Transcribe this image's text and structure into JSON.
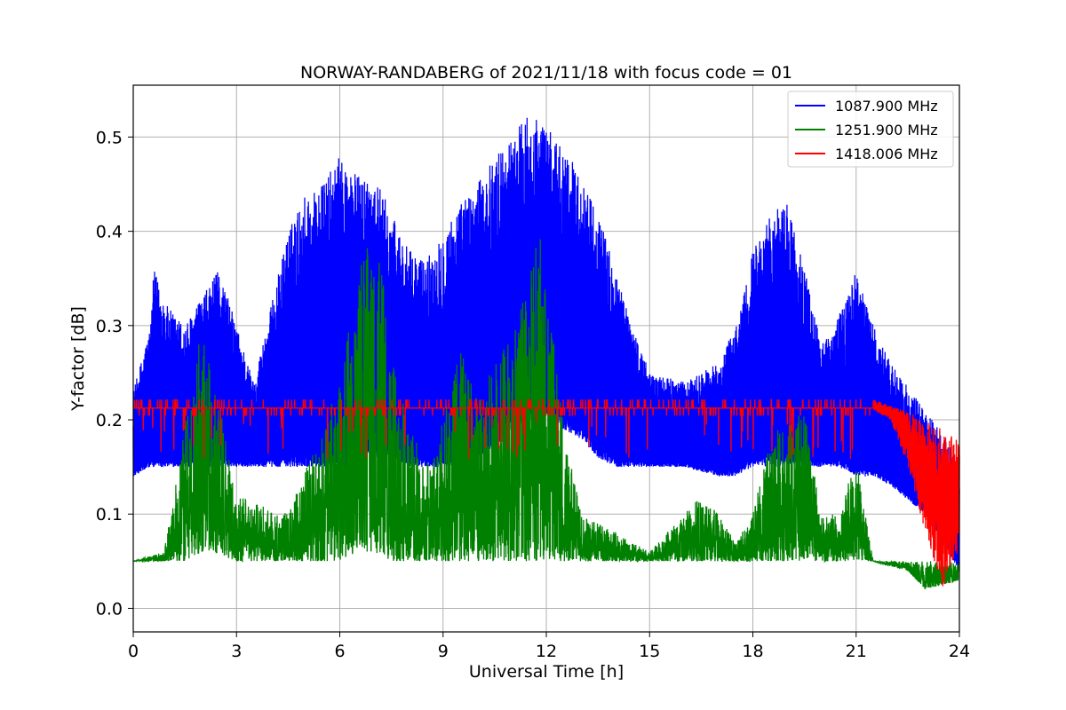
{
  "chart_data": {
    "type": "line",
    "title": "NORWAY-RANDABERG of 2021/11/18 with focus code = 01",
    "xlabel": "Universal Time [h]",
    "ylabel": "Y-factor [dB]",
    "xlim": [
      0,
      24
    ],
    "ylim": [
      -0.025,
      0.555
    ],
    "xticks": [
      0,
      3,
      6,
      9,
      12,
      15,
      18,
      21,
      24
    ],
    "yticks": [
      0.0,
      0.1,
      0.2,
      0.3,
      0.4,
      0.5
    ],
    "ytick_labels": [
      "0.0",
      "0.1",
      "0.2",
      "0.3",
      "0.4",
      "0.5"
    ],
    "grid": true,
    "legend_position": "top-right",
    "series": [
      {
        "name": "1087.900 MHz",
        "color": "#0000ff",
        "envelope": {
          "x": [
            0,
            0.5,
            0.6,
            1.0,
            1.5,
            2.0,
            2.5,
            3.0,
            3.5,
            4.5,
            5.0,
            5.5,
            6.0,
            6.5,
            7.0,
            7.5,
            8.0,
            8.5,
            9.0,
            9.5,
            10.0,
            10.5,
            11.0,
            11.5,
            12.0,
            12.5,
            13.0,
            13.5,
            14.0,
            14.5,
            15.0,
            16.0,
            17.0,
            17.5,
            18.0,
            18.5,
            19.0,
            19.5,
            20.0,
            20.5,
            21.0,
            21.5,
            22.0,
            23.0,
            24.0
          ],
          "max": [
            0.23,
            0.3,
            0.36,
            0.32,
            0.3,
            0.33,
            0.36,
            0.3,
            0.24,
            0.4,
            0.44,
            0.45,
            0.48,
            0.46,
            0.46,
            0.42,
            0.38,
            0.37,
            0.4,
            0.43,
            0.45,
            0.48,
            0.5,
            0.53,
            0.51,
            0.49,
            0.46,
            0.42,
            0.36,
            0.3,
            0.25,
            0.24,
            0.26,
            0.3,
            0.38,
            0.42,
            0.43,
            0.36,
            0.28,
            0.31,
            0.36,
            0.3,
            0.26,
            0.21,
            0.16
          ],
          "min": [
            0.14,
            0.15,
            0.15,
            0.15,
            0.15,
            0.15,
            0.15,
            0.15,
            0.15,
            0.15,
            0.15,
            0.15,
            0.15,
            0.15,
            0.16,
            0.16,
            0.15,
            0.15,
            0.15,
            0.15,
            0.16,
            0.17,
            0.19,
            0.2,
            0.2,
            0.19,
            0.18,
            0.16,
            0.15,
            0.15,
            0.15,
            0.15,
            0.14,
            0.14,
            0.15,
            0.15,
            0.15,
            0.15,
            0.15,
            0.15,
            0.14,
            0.14,
            0.13,
            0.1,
            0.04
          ]
        }
      },
      {
        "name": "1251.900 MHz",
        "color": "#008000",
        "envelope": {
          "x": [
            0,
            0.9,
            1.5,
            2.0,
            2.3,
            3.0,
            4.5,
            6.0,
            6.5,
            7.0,
            7.5,
            8.0,
            8.5,
            9.0,
            9.5,
            10.0,
            10.5,
            11.0,
            11.5,
            11.8,
            12.5,
            13.0,
            14.0,
            15.0,
            16.0,
            16.5,
            17.0,
            17.5,
            18.0,
            18.5,
            19.0,
            19.5,
            20.0,
            20.5,
            21.0,
            21.5,
            22.5,
            23.0,
            24.0
          ],
          "max": [
            0.05,
            0.06,
            0.2,
            0.3,
            0.26,
            0.12,
            0.1,
            0.24,
            0.36,
            0.4,
            0.3,
            0.2,
            0.15,
            0.2,
            0.28,
            0.22,
            0.26,
            0.29,
            0.35,
            0.43,
            0.2,
            0.1,
            0.08,
            0.06,
            0.1,
            0.12,
            0.1,
            0.07,
            0.1,
            0.18,
            0.2,
            0.21,
            0.1,
            0.1,
            0.16,
            0.05,
            0.05,
            0.05,
            0.05
          ],
          "min": [
            0.05,
            0.05,
            0.05,
            0.06,
            0.06,
            0.05,
            0.05,
            0.05,
            0.06,
            0.06,
            0.05,
            0.05,
            0.05,
            0.05,
            0.05,
            0.05,
            0.05,
            0.05,
            0.05,
            0.05,
            0.05,
            0.05,
            0.05,
            0.05,
            0.05,
            0.05,
            0.05,
            0.05,
            0.05,
            0.05,
            0.05,
            0.05,
            0.05,
            0.05,
            0.05,
            0.05,
            0.04,
            0.02,
            0.03
          ]
        }
      },
      {
        "name": "1418.006 MHz",
        "color": "#ff0000",
        "envelope": {
          "x": [
            0,
            21.5,
            22.0,
            22.5,
            23.0,
            23.5,
            24.0
          ],
          "max": [
            0.222,
            0.222,
            0.215,
            0.21,
            0.2,
            0.19,
            0.18
          ],
          "min": [
            0.21,
            0.21,
            0.2,
            0.15,
            0.08,
            0.02,
            0.06
          ]
        }
      }
    ]
  }
}
